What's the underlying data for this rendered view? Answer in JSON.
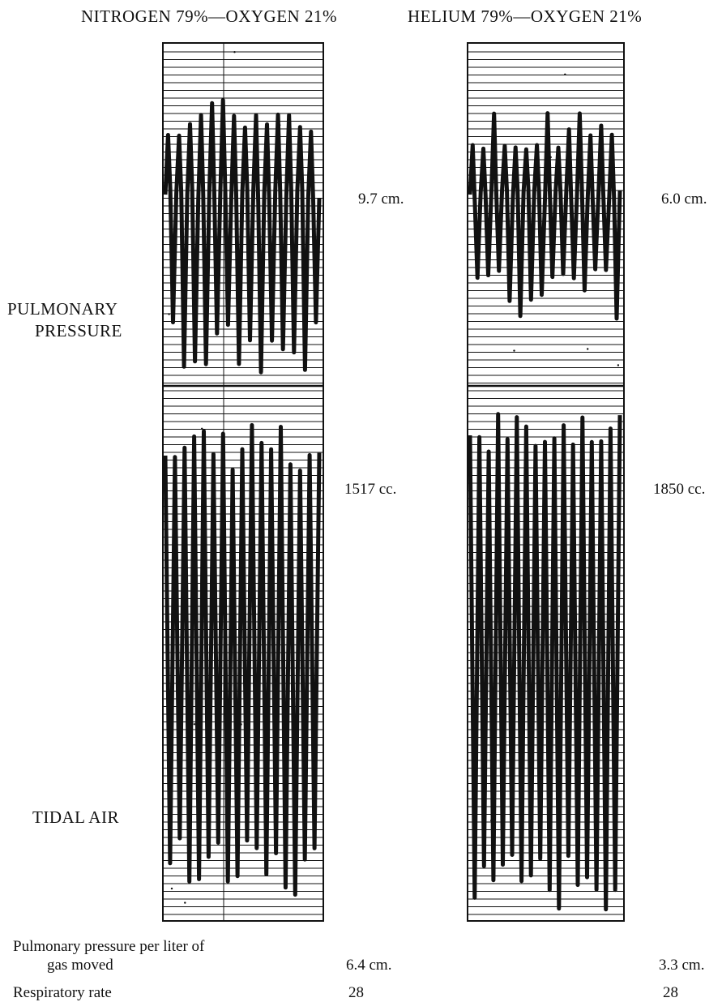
{
  "headers": {
    "left": "NITROGEN 79%—OXYGEN 21%",
    "right": "HELIUM 79%—OXYGEN 21%"
  },
  "row_labels": {
    "pulmonary_line1": "PULMONARY",
    "pulmonary_line2": "PRESSURE",
    "tidal": "TIDAL AIR"
  },
  "values": {
    "left_pressure": "9.7 cm.",
    "right_pressure": "6.0 cm.",
    "left_tidal": "1517 cc.",
    "right_tidal": "1850 cc."
  },
  "footer": {
    "pressure_label_line1": "Pulmonary pressure per liter of",
    "pressure_label_line2": "gas moved",
    "left_pressure_per_liter": "6.4 cm.",
    "right_pressure_per_liter": "3.3 cm.",
    "rate_label": "Respiratory rate",
    "left_rate": "28",
    "right_rate": "28"
  },
  "colors": {
    "ink": "#111111",
    "paper": "#ffffff"
  }
}
